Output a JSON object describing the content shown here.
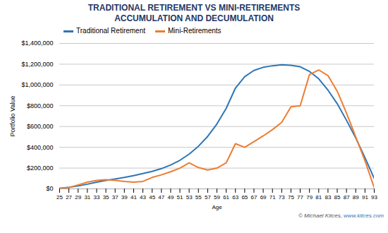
{
  "chart_data": {
    "type": "line",
    "title": "TRADITIONAL RETIREMENT VS MINI-RETIREMENTS",
    "subtitle": "ACCUMULATION AND DECUMULATION",
    "xlabel": "Age",
    "ylabel": "Portfolio Value",
    "x": [
      25,
      27,
      29,
      31,
      33,
      35,
      37,
      39,
      41,
      43,
      45,
      47,
      49,
      51,
      53,
      55,
      57,
      59,
      61,
      63,
      65,
      67,
      69,
      71,
      73,
      75,
      77,
      79,
      81,
      83,
      85,
      87,
      89,
      91,
      93
    ],
    "series": [
      {
        "name": "Traditional Retirement",
        "color": "#2E75B6",
        "values": [
          5000,
          15000,
          28000,
          45000,
          65000,
          82000,
          95000,
          110000,
          128000,
          148000,
          168000,
          195000,
          230000,
          275000,
          335000,
          410000,
          505000,
          625000,
          775000,
          970000,
          1080000,
          1140000,
          1170000,
          1185000,
          1195000,
          1190000,
          1175000,
          1130000,
          1060000,
          950000,
          820000,
          660000,
          490000,
          300000,
          100000
        ]
      },
      {
        "name": "Mini-Retirements",
        "color": "#ED7D31",
        "values": [
          5000,
          12000,
          38000,
          65000,
          82000,
          88000,
          82000,
          72000,
          65000,
          72000,
          110000,
          135000,
          165000,
          200000,
          250000,
          205000,
          182000,
          200000,
          250000,
          435000,
          400000,
          455000,
          510000,
          570000,
          640000,
          790000,
          800000,
          1100000,
          1145000,
          1090000,
          940000,
          730000,
          500000,
          270000,
          10000
        ]
      }
    ],
    "xlim": [
      25,
      93
    ],
    "xticks": [
      25,
      27,
      29,
      31,
      33,
      35,
      37,
      39,
      41,
      43,
      45,
      47,
      49,
      51,
      53,
      55,
      57,
      59,
      61,
      63,
      65,
      67,
      69,
      71,
      73,
      75,
      77,
      79,
      81,
      83,
      85,
      87,
      89,
      91,
      93
    ],
    "ylim": [
      0,
      1400000
    ],
    "yticks": [
      {
        "value": 0,
        "label": "$0"
      },
      {
        "value": 200000,
        "label": "$200,000"
      },
      {
        "value": 400000,
        "label": "$400,000"
      },
      {
        "value": 600000,
        "label": "$600,000"
      },
      {
        "value": 800000,
        "label": "$800,000"
      },
      {
        "value": 1000000,
        "label": "$1,000,000"
      },
      {
        "value": 1200000,
        "label": "$1,200,000"
      },
      {
        "value": 1400000,
        "label": "$1,400,000"
      }
    ],
    "grid": "y",
    "legend": "upper left",
    "annotations": [
      {
        "text": "© Michael Kitces, ",
        "color": "#555555"
      },
      {
        "text": "www.kitces.com",
        "color": "#2E75B6"
      }
    ]
  }
}
